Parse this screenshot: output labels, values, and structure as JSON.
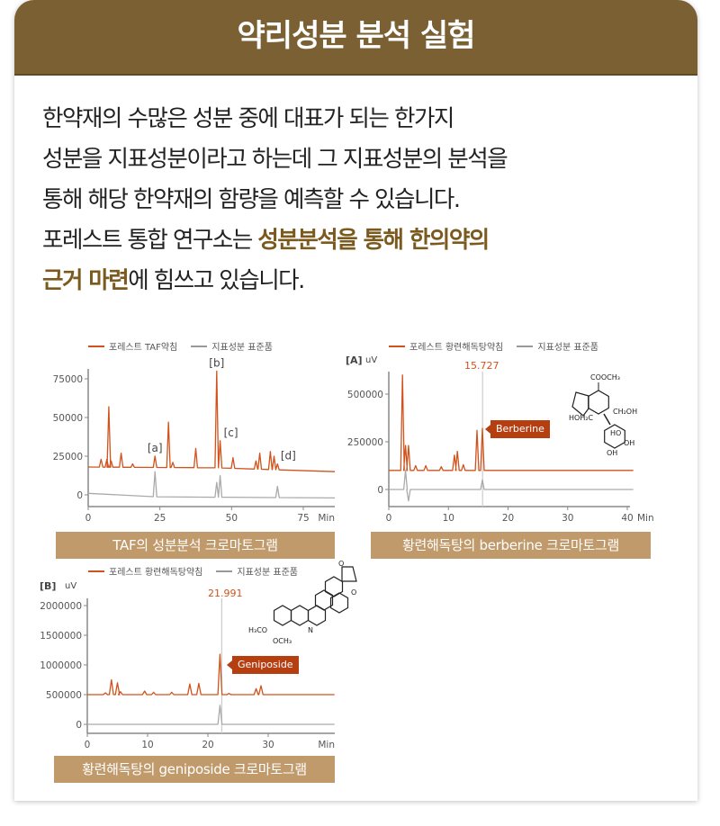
{
  "header": {
    "title": "약리성분 분석 실험"
  },
  "intro": {
    "lines": [
      {
        "parts": [
          {
            "text": "한약재의 수많은 성분 중에 대표가 되는 한가지"
          }
        ]
      },
      {
        "parts": [
          {
            "text": "성분을 지표성분이라고 하는데 그 지표성분의 분석을"
          }
        ]
      },
      {
        "parts": [
          {
            "text": "통해 해당 한약재의 함량을 예측할 수 있습니다."
          }
        ]
      },
      {
        "parts": [
          {
            "text": "포레스트 통합 연구소는 "
          },
          {
            "text": "성분분석을 통해 한의약의",
            "highlight": true
          }
        ]
      },
      {
        "parts": [
          {
            "text": "근거 마련",
            "highlight": true
          },
          {
            "text": "에 힘쓰고 있습니다."
          }
        ]
      }
    ]
  },
  "colors": {
    "header": "#7a6032",
    "caption": "#c19a6b",
    "sample": "#d0531d",
    "standard": "#aaaaaa",
    "highlight": "#7a5a1e",
    "tag": "#b63f12"
  },
  "chart_data": [
    {
      "type": "line",
      "caption": "TAF의 성분분석 크로마토그램",
      "legend": [
        "포레스트 TAF약침",
        "지표성분 표준품"
      ],
      "panel_label": "",
      "ylabel": "",
      "xlabel": "Min",
      "xlim": [
        0,
        86
      ],
      "ylim": [
        -8000,
        80000
      ],
      "xticks": [
        "0",
        "25",
        "50",
        "75"
      ],
      "xtick_values": [
        0,
        25,
        50,
        75
      ],
      "yticks": [
        "0",
        "25000",
        "50000",
        "75000"
      ],
      "ytick_values": [
        0,
        25000,
        50000,
        75000
      ],
      "annotations": [
        {
          "text": "[a]",
          "x": 23.3,
          "y": 25000
        },
        {
          "text": "[b]",
          "x": 44.8,
          "y": 80000
        },
        {
          "text": "[c]",
          "x": 46,
          "y": 35000
        },
        {
          "text": "[d]",
          "x": 66,
          "y": 20000
        }
      ],
      "series": [
        {
          "name": "포레스트 TAF약침",
          "baseline": [
            [
              0,
              18000
            ],
            [
              45,
              17500
            ],
            [
              86,
              15000
            ]
          ],
          "peaks": [
            [
              4.5,
              23000
            ],
            [
              6.5,
              23000
            ],
            [
              7.2,
              57000
            ],
            [
              8,
              22000
            ],
            [
              11.5,
              27000
            ],
            [
              15.5,
              20000
            ],
            [
              23.3,
              25000
            ],
            [
              28,
              47000
            ],
            [
              29.5,
              21000
            ],
            [
              37.5,
              30000
            ],
            [
              44.8,
              80000
            ],
            [
              46,
              35000
            ],
            [
              50.5,
              24000
            ],
            [
              58.5,
              22000
            ],
            [
              59.8,
              27000
            ],
            [
              63.5,
              28000
            ],
            [
              64.8,
              25000
            ],
            [
              66,
              20000
            ]
          ]
        },
        {
          "name": "지표성분 표준품",
          "baseline": [
            [
              0,
              1000
            ],
            [
              9,
              -1000
            ],
            [
              45,
              -1500
            ],
            [
              86,
              -2000
            ]
          ],
          "peaks": [
            [
              23.3,
              15000
            ],
            [
              44.8,
              8000
            ],
            [
              46,
              12500
            ],
            [
              66,
              5500
            ]
          ]
        }
      ]
    },
    {
      "type": "line",
      "caption": "황련해독탕의 berberine 크로마토그램",
      "legend": [
        "포레스트 황련해독탕약침",
        "지표성분 표준품"
      ],
      "panel_label": "[A]",
      "ylabel": "uV",
      "xlabel": "Min",
      "xlim": [
        0,
        41
      ],
      "ylim": [
        -80000,
        600000
      ],
      "xticks": [
        "0",
        "10",
        "20",
        "30",
        "40"
      ],
      "xtick_values": [
        0,
        10,
        20,
        30,
        40
      ],
      "yticks": [
        "0",
        "250000",
        "500000"
      ],
      "ytick_values": [
        0,
        250000,
        500000
      ],
      "retention_time": {
        "label": "15.727",
        "x": 15.727
      },
      "peak_label": "Berberine",
      "structure_labels": [
        "COOCH₃",
        "HOH₂C",
        "CH₂OH",
        "HO",
        "OH",
        "OH",
        "O",
        "O"
      ],
      "series": [
        {
          "name": "포레스트 황련해독탕약침",
          "baseline": [
            [
              0,
              100000
            ],
            [
              41,
              100000
            ]
          ],
          "peaks": [
            [
              2.3,
              600000
            ],
            [
              2.8,
              230000
            ],
            [
              3.3,
              230000
            ],
            [
              4.5,
              125000
            ],
            [
              6.2,
              125000
            ],
            [
              8.8,
              120000
            ],
            [
              11,
              180000
            ],
            [
              11.5,
              200000
            ],
            [
              12.5,
              130000
            ],
            [
              14.8,
              310000
            ],
            [
              15.7,
              320000
            ]
          ]
        },
        {
          "name": "지표성분 표준품",
          "baseline": [
            [
              0,
              0
            ],
            [
              41,
              0
            ]
          ],
          "peaks": [
            [
              2.8,
              100000
            ],
            [
              3.3,
              -60000
            ],
            [
              15.7,
              50000
            ]
          ]
        }
      ]
    },
    {
      "type": "line",
      "caption": "황련해독탕의 geniposide 크로마토그램",
      "legend": [
        "포레스트 황련해독탕약침",
        "지표성분 표준품"
      ],
      "panel_label": "[B]",
      "ylabel": "uV",
      "xlabel": "Min",
      "xlim": [
        0,
        41
      ],
      "ylim": [
        -150000,
        2100000
      ],
      "xticks": [
        "0",
        "10",
        "20",
        "30"
      ],
      "xtick_values": [
        0,
        10,
        20,
        30
      ],
      "yticks": [
        "0",
        "500000",
        "1000000",
        "1500000",
        "2000000"
      ],
      "ytick_values": [
        0,
        500000,
        1000000,
        1500000,
        2000000
      ],
      "retention_time": {
        "label": "21.991",
        "x": 22.3
      },
      "peak_label": "Geniposide",
      "structure_labels": [
        "O",
        "O",
        "H₃CO",
        "OCH₃",
        "N"
      ],
      "series": [
        {
          "name": "포레스트 황련해독탕약침",
          "baseline": [
            [
              0,
              500000
            ],
            [
              41,
              500000
            ]
          ],
          "peaks": [
            [
              3,
              530000
            ],
            [
              4,
              750000
            ],
            [
              5,
              700000
            ],
            [
              5.5,
              550000
            ],
            [
              9.5,
              560000
            ],
            [
              11,
              540000
            ],
            [
              14,
              540000
            ],
            [
              17,
              680000
            ],
            [
              18.5,
              690000
            ],
            [
              22,
              1180000
            ],
            [
              23.5,
              520000
            ],
            [
              28,
              600000
            ],
            [
              28.8,
              650000
            ]
          ]
        },
        {
          "name": "지표성분 표준품",
          "baseline": [
            [
              0,
              0
            ],
            [
              41,
              0
            ]
          ],
          "peaks": [
            [
              22,
              320000
            ]
          ]
        }
      ]
    }
  ]
}
